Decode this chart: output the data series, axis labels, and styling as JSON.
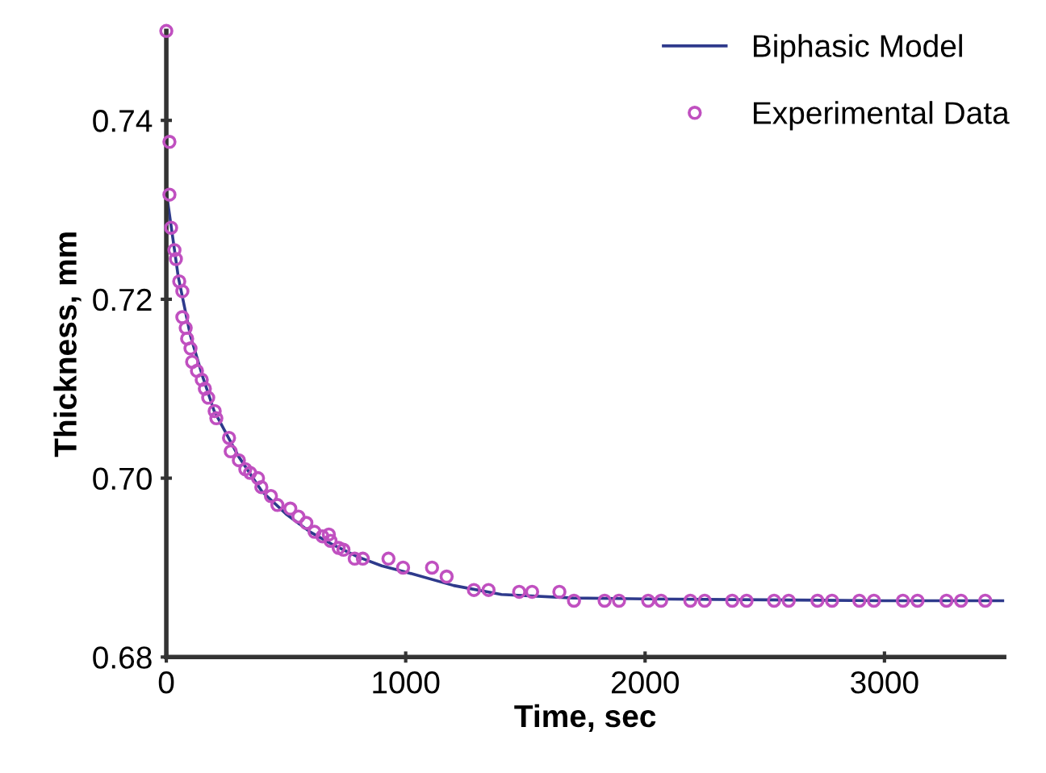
{
  "chart_data": {
    "type": "line",
    "xlabel": "Time, sec",
    "ylabel": "Thickness, mm",
    "xlim": [
      0,
      3500
    ],
    "xticks": [
      0,
      1000,
      2000,
      3000
    ],
    "ylim": [
      0.68,
      0.75
    ],
    "yticks": [
      {
        "value": 0.68,
        "label": "0.68"
      },
      {
        "value": 0.7,
        "label": "0.70"
      },
      {
        "value": 0.72,
        "label": "0.72"
      },
      {
        "value": 0.74,
        "label": "0.74"
      }
    ],
    "grid": false,
    "legend": "top right",
    "series": [
      {
        "name": "Biphasic Model",
        "color": "#2e3a8c",
        "marker": "none",
        "line_style": "solid",
        "x": [
          0,
          50,
          100,
          150,
          200,
          300,
          400,
          500,
          600,
          700,
          800,
          900,
          1000,
          1200,
          1400,
          1700,
          2000,
          2500,
          3000,
          3500
        ],
        "values": [
          0.732,
          0.7225,
          0.716,
          0.7115,
          0.7075,
          0.7025,
          0.6985,
          0.696,
          0.694,
          0.6925,
          0.6912,
          0.6902,
          0.6895,
          0.688,
          0.687,
          0.6866,
          0.6865,
          0.6864,
          0.6863,
          0.6863
        ]
      },
      {
        "name": "Experimental Data",
        "type": "scatter",
        "color": "#c050c0",
        "marker": "circle",
        "x": [
          0,
          13,
          13,
          20,
          34,
          40,
          54,
          67,
          67,
          81,
          87,
          101,
          108,
          128,
          148,
          161,
          175,
          202,
          209,
          262,
          269,
          303,
          330,
          350,
          383,
          397,
          437,
          464,
          518,
          552,
          585,
          619,
          652,
          679,
          686,
          720,
          740,
          787,
          821,
          928,
          989,
          1110,
          1171,
          1285,
          1346,
          1474,
          1528,
          1642,
          1703,
          1831,
          1891,
          2013,
          2067,
          2189,
          2249,
          2364,
          2424,
          2539,
          2600,
          2720,
          2781,
          2895,
          2956,
          3077,
          3138,
          3259,
          3320,
          3421
        ],
        "values": [
          0.75,
          0.7376,
          0.7317,
          0.728,
          0.7255,
          0.7245,
          0.722,
          0.7209,
          0.718,
          0.7168,
          0.7156,
          0.7145,
          0.713,
          0.712,
          0.711,
          0.71,
          0.709,
          0.7075,
          0.7067,
          0.7045,
          0.703,
          0.702,
          0.701,
          0.7006,
          0.7,
          0.699,
          0.698,
          0.697,
          0.6966,
          0.6957,
          0.695,
          0.694,
          0.6935,
          0.6937,
          0.693,
          0.6922,
          0.692,
          0.691,
          0.691,
          0.691,
          0.69,
          0.69,
          0.689,
          0.6875,
          0.6875,
          0.6873,
          0.6873,
          0.6873,
          0.6863,
          0.6863,
          0.6863,
          0.6863,
          0.6863,
          0.6863,
          0.6863,
          0.6863,
          0.6863,
          0.6863,
          0.6863,
          0.6863,
          0.6863,
          0.6863,
          0.6863,
          0.6863,
          0.6863,
          0.6863,
          0.6863,
          0.6863
        ]
      }
    ]
  }
}
